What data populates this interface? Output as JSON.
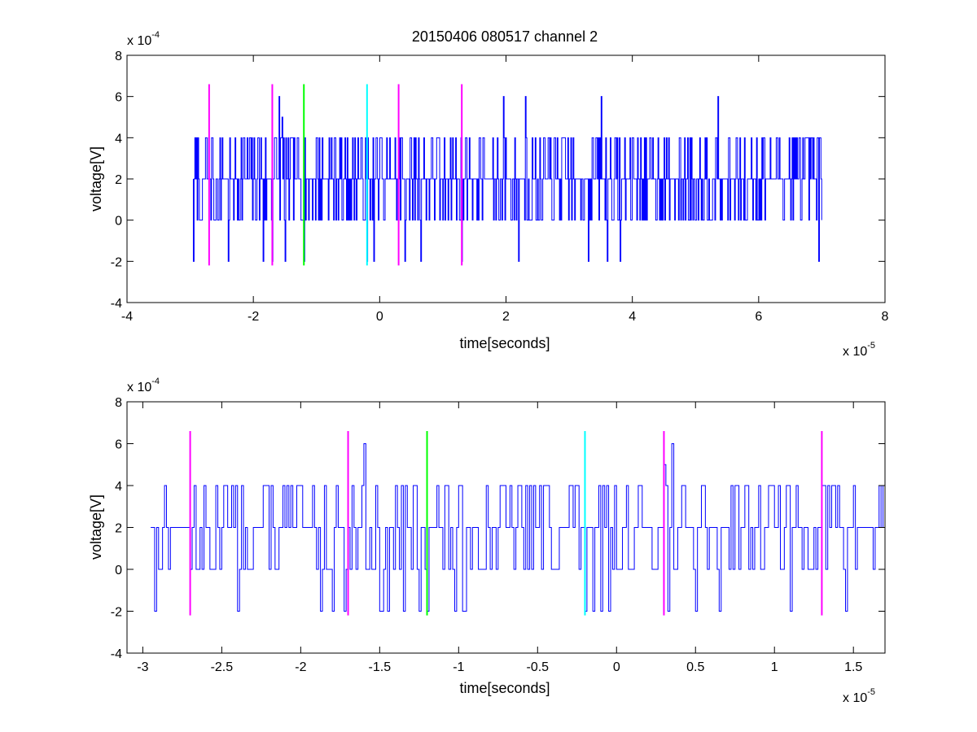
{
  "title": "20150406 080517 channel 2",
  "colors": {
    "signal": "#0000ff",
    "magenta_marker": "#ff00ff",
    "green_marker": "#00ff00",
    "cyan_marker": "#00ffff",
    "axes": "#000000"
  },
  "chart_data": [
    {
      "type": "line",
      "title": "20150406 080517 channel 2",
      "xlabel": "time[seconds]",
      "ylabel": "voltage[V]",
      "x_multiplier": "x 10",
      "x_multiplier_exp": "-5",
      "y_multiplier": "x 10",
      "y_multiplier_exp": "-4",
      "xlim": [
        -4,
        8
      ],
      "ylim": [
        -4,
        8
      ],
      "x_ticks": [
        -4,
        -2,
        0,
        2,
        4,
        6,
        8
      ],
      "x_tick_labels": [
        "-4",
        "-2",
        "0",
        "2",
        "4",
        "6",
        "8"
      ],
      "y_ticks": [
        -4,
        -2,
        0,
        2,
        4,
        6,
        8
      ],
      "y_tick_labels": [
        "-4",
        "-2",
        "0",
        "2",
        "4",
        "6",
        "8"
      ],
      "grid": false,
      "signal": {
        "x_start": -2.95,
        "x_end": 7.0,
        "levels": [
          -2,
          0,
          2,
          4,
          6
        ],
        "typical_range": [
          0,
          4
        ],
        "peak_values": [
          {
            "x": -1.6,
            "y": 6
          },
          {
            "x": -1.55,
            "y": 5
          },
          {
            "x": 1.95,
            "y": 6
          },
          {
            "x": 2.3,
            "y": 6
          },
          {
            "x": 3.5,
            "y": 6
          },
          {
            "x": 5.35,
            "y": 6
          }
        ],
        "trough_values": [
          {
            "x": -2.95,
            "y": -2
          },
          {
            "x": -2.4,
            "y": -2
          },
          {
            "x": -1.85,
            "y": -2
          },
          {
            "x": -1.7,
            "y": -2
          },
          {
            "x": -1.5,
            "y": -2
          },
          {
            "x": -1.2,
            "y": -2
          },
          {
            "x": -0.2,
            "y": -2
          },
          {
            "x": -0.1,
            "y": -2
          },
          {
            "x": 0.4,
            "y": -2
          },
          {
            "x": 0.65,
            "y": -2
          },
          {
            "x": 1.3,
            "y": -2
          },
          {
            "x": 2.2,
            "y": -2
          },
          {
            "x": 3.3,
            "y": -2
          },
          {
            "x": 3.6,
            "y": -2
          },
          {
            "x": 3.8,
            "y": -2
          },
          {
            "x": 6.95,
            "y": -2
          }
        ]
      },
      "markers": [
        {
          "x": -2.7,
          "color": "magenta"
        },
        {
          "x": -1.7,
          "color": "magenta"
        },
        {
          "x": -1.2,
          "color": "green"
        },
        {
          "x": -0.2,
          "color": "cyan"
        },
        {
          "x": 0.3,
          "color": "magenta"
        },
        {
          "x": 1.3,
          "color": "magenta"
        }
      ],
      "marker_yrange": [
        -2.2,
        6.6
      ]
    },
    {
      "type": "line",
      "xlabel": "time[seconds]",
      "ylabel": "voltage[V]",
      "x_multiplier": "x 10",
      "x_multiplier_exp": "-5",
      "y_multiplier": "x 10",
      "y_multiplier_exp": "-4",
      "xlim": [
        -3.1,
        1.7
      ],
      "ylim": [
        -4,
        8
      ],
      "x_ticks": [
        -3,
        -2.5,
        -2,
        -1.5,
        -1,
        -0.5,
        0,
        0.5,
        1,
        1.5
      ],
      "x_tick_labels": [
        "-3",
        "-2.5",
        "-2",
        "-1.5",
        "-1",
        "-0.5",
        "0",
        "0.5",
        "1",
        "1.5"
      ],
      "y_ticks": [
        -4,
        -2,
        0,
        2,
        4,
        6,
        8
      ],
      "y_tick_labels": [
        "-4",
        "-2",
        "0",
        "2",
        "4",
        "6",
        "8"
      ],
      "grid": false,
      "signal": {
        "x_start": -2.95,
        "x_end": 1.7,
        "levels": [
          -2,
          0,
          2,
          4,
          6
        ],
        "typical_range": [
          0,
          4
        ],
        "peak_values": [
          {
            "x": -1.6,
            "y": 6
          },
          {
            "x": 0.35,
            "y": 6
          },
          {
            "x": 0.3,
            "y": 5
          }
        ],
        "trough_values": [
          {
            "x": -2.92,
            "y": -2
          },
          {
            "x": -2.4,
            "y": -2
          },
          {
            "x": -1.88,
            "y": -2
          },
          {
            "x": -1.8,
            "y": -2
          },
          {
            "x": -1.72,
            "y": -2
          },
          {
            "x": -1.5,
            "y": -2
          },
          {
            "x": -1.45,
            "y": -2
          },
          {
            "x": -1.35,
            "y": -2
          },
          {
            "x": -1.25,
            "y": -2
          },
          {
            "x": -1.2,
            "y": -2
          },
          {
            "x": -1.02,
            "y": -2
          },
          {
            "x": -0.98,
            "y": -2
          },
          {
            "x": -0.2,
            "y": -2
          },
          {
            "x": -0.15,
            "y": -2
          },
          {
            "x": -0.1,
            "y": -2
          },
          {
            "x": -0.05,
            "y": -2
          },
          {
            "x": 0.32,
            "y": -2
          },
          {
            "x": 0.5,
            "y": -2
          },
          {
            "x": 0.65,
            "y": -2
          },
          {
            "x": 1.1,
            "y": -2
          },
          {
            "x": 1.45,
            "y": -2
          }
        ]
      },
      "markers": [
        {
          "x": -2.7,
          "color": "magenta"
        },
        {
          "x": -1.7,
          "color": "magenta"
        },
        {
          "x": -1.2,
          "color": "green"
        },
        {
          "x": -0.2,
          "color": "cyan"
        },
        {
          "x": 0.3,
          "color": "magenta"
        },
        {
          "x": 1.3,
          "color": "magenta"
        }
      ],
      "marker_yrange": [
        -2.2,
        6.6
      ]
    }
  ]
}
